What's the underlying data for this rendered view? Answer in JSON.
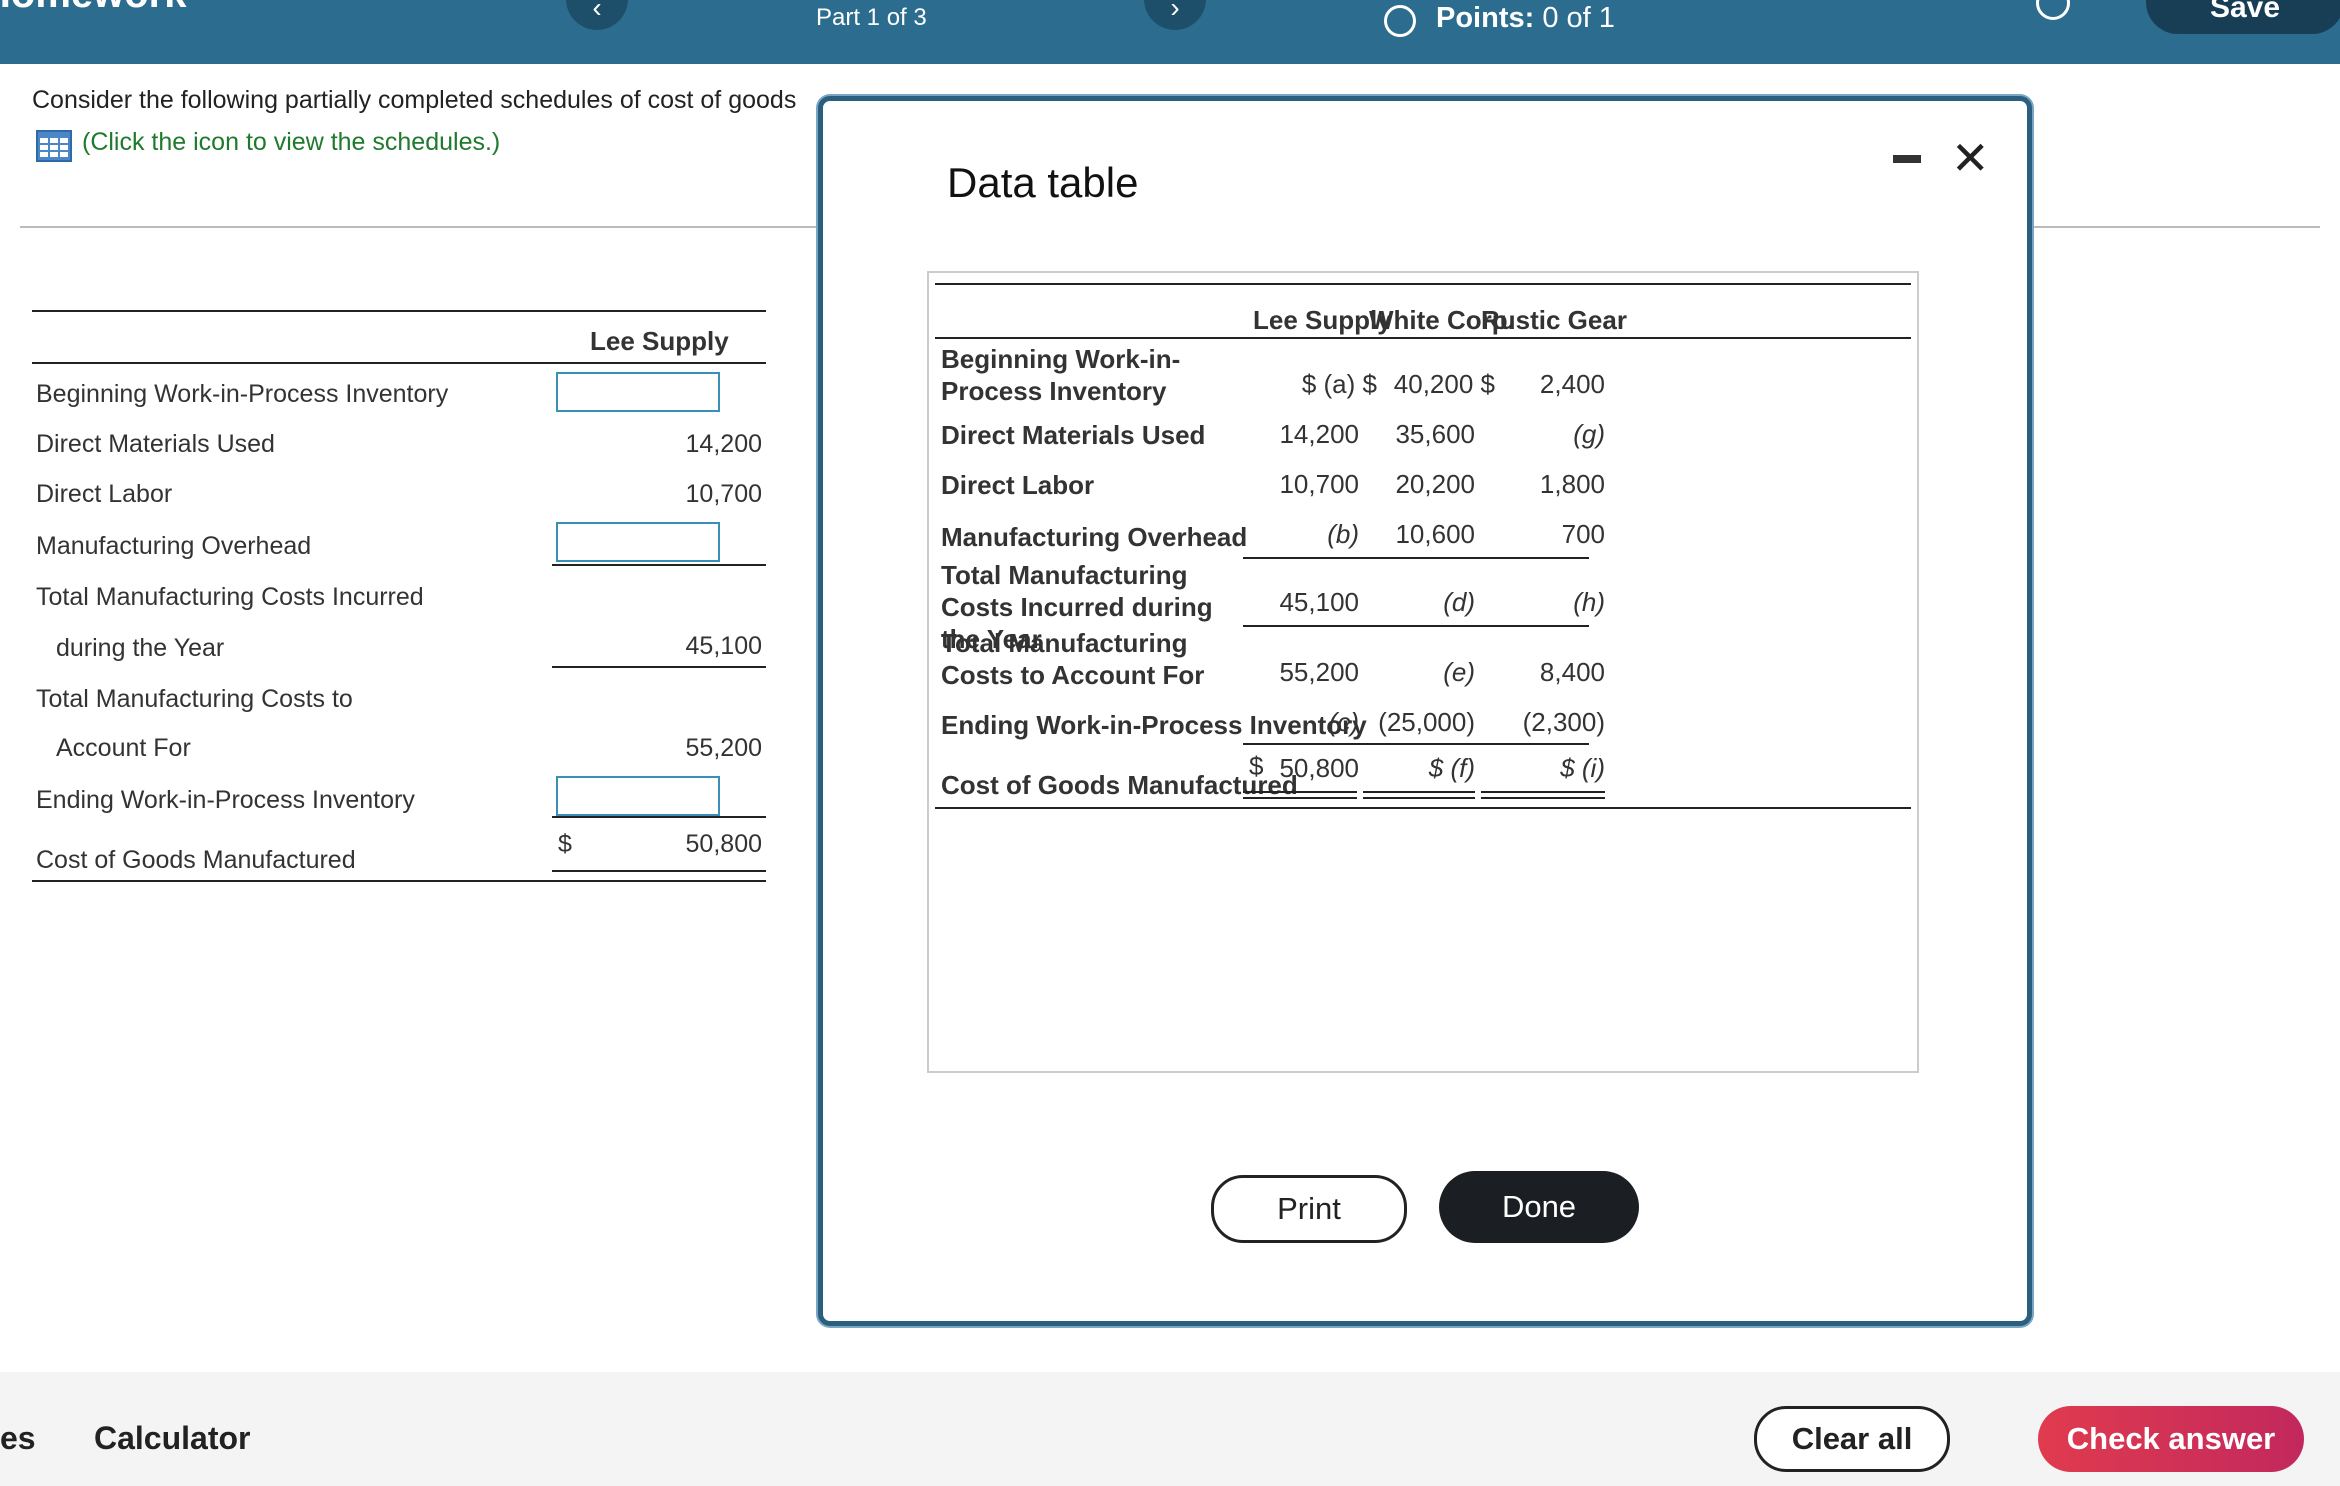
{
  "topbar": {
    "title": "Homework",
    "part": "Part 1 of 3",
    "points_label": "Points:",
    "points_value": "0 of 1",
    "save_label": "Save"
  },
  "question": {
    "text": "Consider the following partially completed schedules of cost of goods",
    "link": "(Click the icon to view the schedules.)"
  },
  "schedule": {
    "header": "Lee Supply",
    "rows": {
      "beg_wip": "Beginning Work-in-Process Inventory",
      "dm": "Direct Materials Used",
      "dm_val": "14,200",
      "dl": "Direct Labor",
      "dl_val": "10,700",
      "moh": "Manufacturing Overhead",
      "tmci1": "Total Manufacturing Costs Incurred",
      "tmci2": "during the Year",
      "tmci_val": "45,100",
      "tmca1": "Total Manufacturing Costs to",
      "tmca2": "Account For",
      "tmca_val": "55,200",
      "end_wip": "Ending Work-in-Process Inventory",
      "cogm": "Cost of Goods Manufactured",
      "cogm_dollar": "$",
      "cogm_val": "50,800"
    }
  },
  "modal": {
    "title": "Data table",
    "print_label": "Print",
    "done_label": "Done",
    "headers": [
      "Lee Supply",
      "White Corp.",
      "Rustic Gear"
    ],
    "labels": {
      "beg_wip": "Beginning Work-in-Process Inventory",
      "dm": "Direct Materials Used",
      "dl": "Direct Labor",
      "moh": "Manufacturing Overhead",
      "tmci": "Total Manufacturing Costs Incurred during the Year",
      "tmca": "Total Manufacturing Costs to Account For",
      "end_wip": "Ending Work-in-Process Inventory",
      "cogm": "Cost of Goods Manufactured"
    },
    "values": {
      "beg_wip": [
        "$ (a) $",
        "40,200 $",
        "2,400"
      ],
      "dm": [
        "14,200",
        "35,600",
        "(g)"
      ],
      "dl": [
        "10,700",
        "20,200",
        "1,800"
      ],
      "moh": [
        "(b)",
        "10,600",
        "700"
      ],
      "tmci": [
        "45,100",
        "(d)",
        "(h)"
      ],
      "tmca": [
        "55,200",
        "(e)",
        "8,400"
      ],
      "end_wip": [
        "(c)",
        "(25,000)",
        "(2,300)"
      ],
      "cogm_dollar": "$",
      "cogm": [
        "50,800",
        "$ (f)",
        "$ (i)"
      ]
    }
  },
  "bottombar": {
    "left_partial": "es",
    "calculator": "Calculator",
    "clear_all": "Clear all",
    "check_answer": "Check answer"
  }
}
